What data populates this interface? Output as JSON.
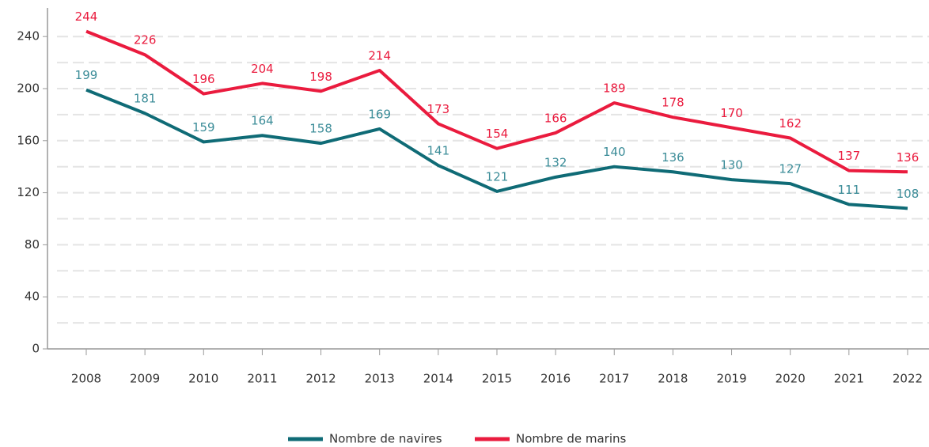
{
  "chart_data": {
    "type": "line",
    "categories": [
      "2008",
      "2009",
      "2010",
      "2011",
      "2012",
      "2013",
      "2014",
      "2015",
      "2016",
      "2017",
      "2018",
      "2019",
      "2020",
      "2021",
      "2022"
    ],
    "series": [
      {
        "name": "Nombre de navires",
        "color": "#0f6b76",
        "label_color": "#3b8c98",
        "values": [
          199,
          181,
          159,
          164,
          158,
          169,
          141,
          121,
          132,
          140,
          136,
          130,
          127,
          111,
          108
        ]
      },
      {
        "name": "Nombre de marins",
        "color": "#ea1b3e",
        "label_color": "#ea1b3e",
        "values": [
          244,
          226,
          196,
          204,
          198,
          214,
          173,
          154,
          166,
          189,
          178,
          170,
          162,
          137,
          136
        ]
      }
    ],
    "ylim": [
      0,
      262
    ],
    "yticks": [
      0,
      40,
      80,
      120,
      160,
      200,
      240
    ],
    "minor_yticks": [
      20,
      60,
      100,
      140,
      180,
      220
    ],
    "grid": true
  }
}
